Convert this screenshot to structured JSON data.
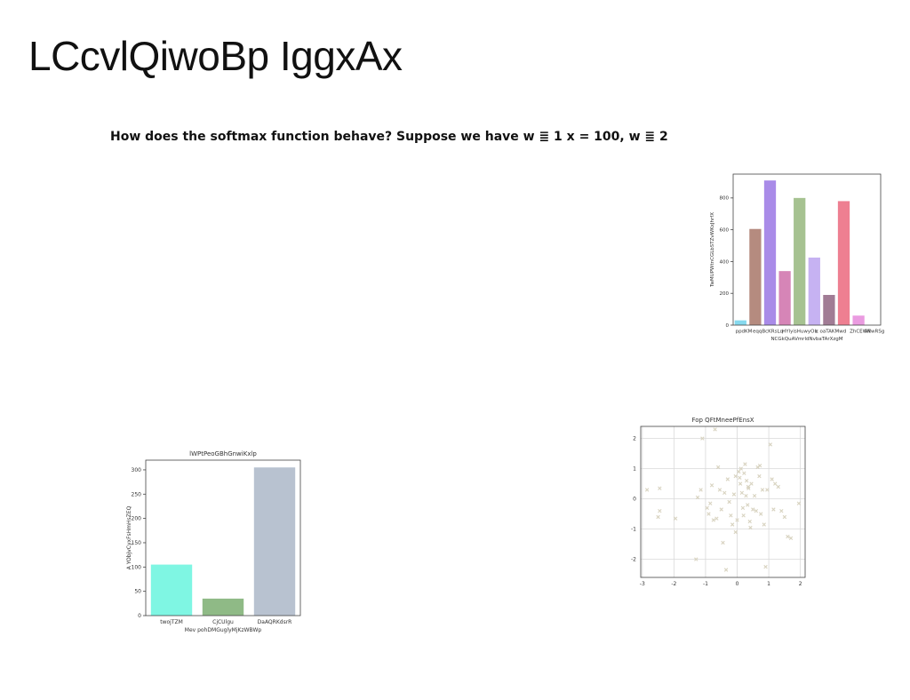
{
  "page": {
    "title": "LCcvlQiwoBp IggxAx",
    "question": "How does the softmax function behave? Suppose we have w ≣ 1 x = 100, w ≣ 2"
  },
  "chart_data": [
    {
      "type": "bar",
      "title": "",
      "xlabel": "NCGkQuAVmrldNvbaTArXzgM",
      "ylabel": "TwMUPWtnCGLbSTZvWKxJhrfX",
      "categories": [
        "ppdKM",
        "eqqBcKRsLq",
        "HYlyisHuwyOb",
        "c oaTAKMwd",
        "ZhCEWR",
        "fWwRSg",
        "",
        "",
        "",
        ""
      ],
      "tick_labels": [
        "ppdKM",
        "eqqBcKRsLq",
        "HYlyisHuwyOb",
        "c oaTAKMwd",
        "ZhCEWR",
        "fWwRSg"
      ],
      "values": [
        30,
        605,
        910,
        340,
        800,
        425,
        190,
        780,
        60,
        0
      ],
      "colors": [
        "#86d9ee",
        "#b58b7f",
        "#a98be8",
        "#d685b7",
        "#a6c291",
        "#c6b2f2",
        "#a17c95",
        "#ee7f91",
        "#ea9be0",
        "#ffffff"
      ],
      "ylim": [
        0,
        950
      ],
      "yticks": [
        0,
        200,
        400,
        600,
        800
      ],
      "grid": false
    },
    {
      "type": "bar",
      "title": "lWPtPeoGBhGnwiKxlp",
      "xlabel": "Mev pohDMGuglyMjKzWBWp",
      "ylabel": "A YObjvCyxFsHmHsZEQ",
      "categories": [
        "twojTZM",
        "CjCUlgu",
        "DaAQRKdsrR"
      ],
      "values": [
        105,
        35,
        305
      ],
      "colors": [
        "#7ff6e3",
        "#8fba86",
        "#b8c2d0"
      ],
      "ylim": [
        0,
        320
      ],
      "yticks": [
        0,
        50,
        100,
        150,
        200,
        250,
        300
      ],
      "grid": false
    },
    {
      "type": "scatter",
      "title": "Fop QFtMneePfEnsX",
      "xlabel": "",
      "ylabel": "",
      "marker": "x",
      "color": "#d8d3c0",
      "xlim": [
        -3.05,
        2.15
      ],
      "ylim": [
        -2.6,
        2.4
      ],
      "xticks": [
        -3,
        -2,
        -1,
        0,
        1,
        2
      ],
      "yticks": [
        -2,
        -1,
        0,
        1,
        2
      ],
      "grid": true,
      "points": [
        [
          -2.85,
          0.3
        ],
        [
          -2.45,
          0.35
        ],
        [
          -2.45,
          -0.4
        ],
        [
          -2.5,
          -0.6
        ],
        [
          -1.95,
          -0.65
        ],
        [
          -1.3,
          -2.0
        ],
        [
          -1.25,
          0.05
        ],
        [
          -1.15,
          0.3
        ],
        [
          -1.1,
          2.0
        ],
        [
          -0.95,
          -0.3
        ],
        [
          -0.9,
          -0.5
        ],
        [
          -0.85,
          -0.15
        ],
        [
          -0.8,
          0.45
        ],
        [
          -0.75,
          -0.7
        ],
        [
          -0.7,
          2.3
        ],
        [
          -0.65,
          -0.65
        ],
        [
          -0.6,
          1.05
        ],
        [
          -0.55,
          0.3
        ],
        [
          -0.5,
          -0.35
        ],
        [
          -0.45,
          -1.45
        ],
        [
          -0.4,
          0.2
        ],
        [
          -0.35,
          -2.35
        ],
        [
          -0.3,
          0.65
        ],
        [
          -0.25,
          -0.1
        ],
        [
          -0.2,
          -0.55
        ],
        [
          -0.15,
          -0.85
        ],
        [
          -0.1,
          0.15
        ],
        [
          -0.05,
          -1.1
        ],
        [
          0.0,
          -0.7
        ],
        [
          0.05,
          0.9
        ],
        [
          0.08,
          0.7
        ],
        [
          0.1,
          0.5
        ],
        [
          0.12,
          1.0
        ],
        [
          0.15,
          0.2
        ],
        [
          0.18,
          -0.3
        ],
        [
          0.2,
          -0.55
        ],
        [
          0.22,
          0.85
        ],
        [
          0.25,
          1.15
        ],
        [
          0.28,
          0.1
        ],
        [
          0.3,
          0.6
        ],
        [
          0.33,
          -0.2
        ],
        [
          0.36,
          0.35
        ],
        [
          0.4,
          -0.75
        ],
        [
          0.42,
          -0.95
        ],
        [
          0.45,
          0.5
        ],
        [
          0.5,
          -0.35
        ],
        [
          0.55,
          0.1
        ],
        [
          0.6,
          -0.4
        ],
        [
          0.65,
          1.05
        ],
        [
          0.7,
          0.75
        ],
        [
          0.72,
          1.1
        ],
        [
          0.75,
          -0.5
        ],
        [
          0.8,
          0.3
        ],
        [
          0.85,
          -0.85
        ],
        [
          0.9,
          -2.25
        ],
        [
          0.95,
          0.3
        ],
        [
          1.05,
          1.8
        ],
        [
          1.1,
          0.65
        ],
        [
          1.15,
          -0.35
        ],
        [
          1.2,
          0.5
        ],
        [
          1.3,
          0.4
        ],
        [
          1.4,
          -0.4
        ],
        [
          1.5,
          -0.6
        ],
        [
          1.6,
          -1.25
        ],
        [
          1.7,
          -1.3
        ],
        [
          1.95,
          -0.15
        ],
        [
          -0.05,
          0.75
        ],
        [
          0.35,
          0.4
        ]
      ]
    }
  ]
}
